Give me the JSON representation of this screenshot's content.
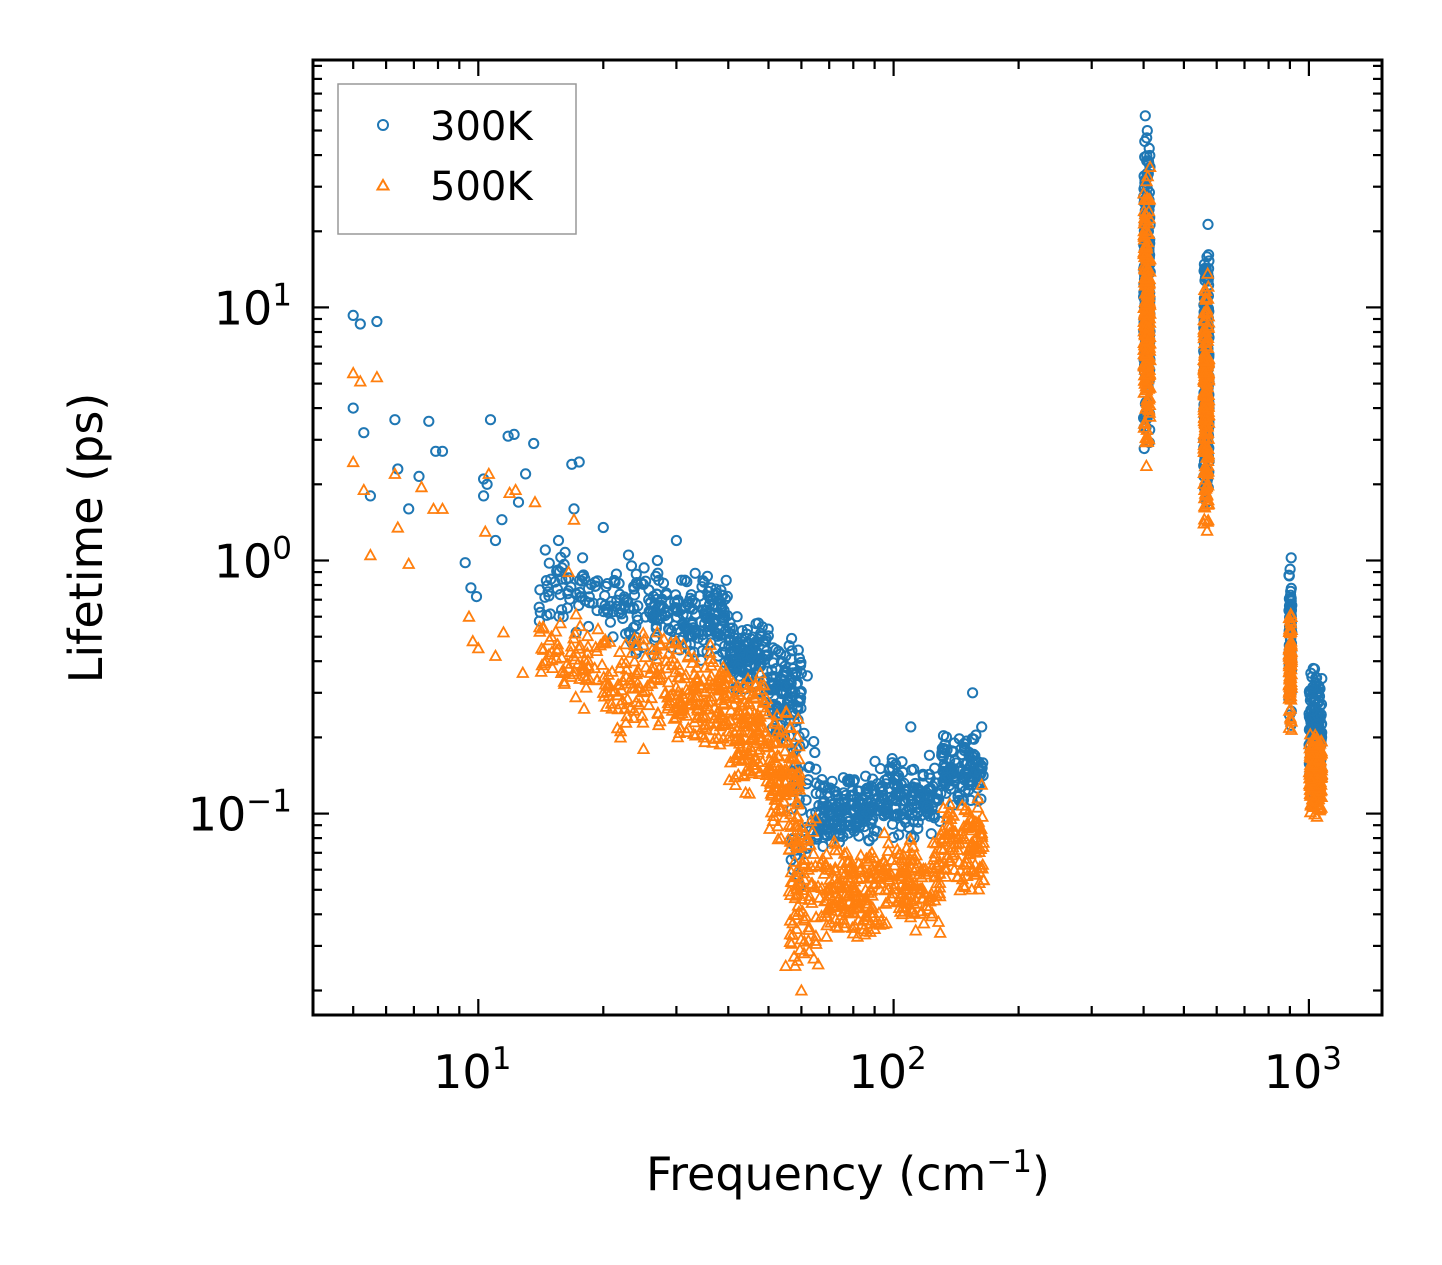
{
  "chart_data": {
    "type": "scatter",
    "title": "",
    "xlabel": "Frequency (cm",
    "xlabel_sup": "−1",
    "xlabel_tail": ")",
    "ylabel": "Lifetime (ps)",
    "xscale": "log",
    "yscale": "log",
    "xlim": [
      4.0,
      1500
    ],
    "ylim": [
      0.016,
      95
    ],
    "x_ticks": [
      {
        "value": 10,
        "base": "10",
        "exp": "1"
      },
      {
        "value": 100,
        "base": "10",
        "exp": "2"
      },
      {
        "value": 1000,
        "base": "10",
        "exp": "3"
      }
    ],
    "y_ticks": [
      {
        "value": 0.1,
        "base": "10",
        "exp": "−1"
      },
      {
        "value": 1,
        "base": "10",
        "exp": "0"
      },
      {
        "value": 10,
        "base": "10",
        "exp": "1"
      }
    ],
    "legend_position": "top-left",
    "series": [
      {
        "name": "300K",
        "marker": "circle",
        "color": "#1f77b4",
        "points": [
          [
            5.0,
            9.3
          ],
          [
            5.2,
            8.6
          ],
          [
            5.7,
            8.8
          ],
          [
            5.0,
            4.0
          ],
          [
            5.3,
            3.2
          ],
          [
            5.5,
            1.8
          ],
          [
            6.3,
            3.6
          ],
          [
            6.4,
            2.3
          ],
          [
            6.8,
            1.6
          ],
          [
            7.2,
            2.15
          ],
          [
            7.6,
            3.55
          ],
          [
            7.9,
            2.7
          ],
          [
            8.2,
            2.7
          ],
          [
            9.3,
            0.98
          ],
          [
            9.6,
            0.78
          ],
          [
            9.9,
            0.72
          ],
          [
            10.3,
            2.1
          ],
          [
            10.3,
            1.8
          ],
          [
            10.5,
            2.0
          ],
          [
            10.7,
            3.6
          ],
          [
            11.0,
            1.2
          ],
          [
            11.4,
            1.45
          ],
          [
            11.8,
            3.1
          ],
          [
            12.2,
            3.15
          ],
          [
            12.5,
            1.7
          ],
          [
            13.0,
            2.2
          ],
          [
            13.6,
            2.9
          ],
          [
            14.5,
            1.1
          ],
          [
            15.6,
            1.2
          ],
          [
            16.8,
            2.4
          ],
          [
            17.5,
            2.45
          ],
          [
            17.0,
            1.6
          ],
          [
            20.0,
            1.35
          ],
          [
            23.0,
            1.05
          ],
          [
            27.0,
            1.0
          ],
          [
            30.0,
            1.2
          ],
          [
            35.0,
            0.82
          ],
          [
            42.0,
            0.6
          ],
          [
            48.0,
            0.5
          ],
          [
            55.0,
            0.42
          ],
          [
            62.0,
            0.35
          ],
          [
            110.0,
            0.22
          ],
          [
            122.0,
            0.17
          ],
          [
            140.0,
            0.19
          ],
          [
            155.0,
            0.3
          ],
          [
            163.0,
            0.22
          ]
        ],
        "bands": [
          {
            "x_range": [
              14,
              20
            ],
            "y_range": [
              0.5,
              1.1
            ],
            "count": 60
          },
          {
            "x_range": [
              20,
              30
            ],
            "y_range": [
              0.4,
              1.05
            ],
            "count": 110
          },
          {
            "x_range": [
              30,
              40
            ],
            "y_range": [
              0.38,
              0.9
            ],
            "count": 130
          },
          {
            "x_range": [
              40,
              50
            ],
            "y_range": [
              0.28,
              0.65
            ],
            "count": 130
          },
          {
            "x_range": [
              50,
              60
            ],
            "y_range": [
              0.18,
              0.5
            ],
            "count": 110
          },
          {
            "x_range": [
              56,
              66
            ],
            "y_range": [
              0.05,
              0.3
            ],
            "count": 60
          },
          {
            "x_range": [
              66,
              90
            ],
            "y_range": [
              0.07,
              0.15
            ],
            "count": 160
          },
          {
            "x_range": [
              90,
              130
            ],
            "y_range": [
              0.08,
              0.17
            ],
            "count": 160
          },
          {
            "x_range": [
              130,
              165
            ],
            "y_range": [
              0.1,
              0.22
            ],
            "count": 120
          },
          {
            "x_range": [
              400,
              415
            ],
            "y_range": [
              2.5,
              60.0
            ],
            "count": 220
          },
          {
            "x_range": [
              558,
              575
            ],
            "y_range": [
              1.5,
              22.0
            ],
            "count": 200
          },
          {
            "x_range": [
              895,
              910
            ],
            "y_range": [
              0.2,
              1.05
            ],
            "count": 90
          },
          {
            "x_range": [
              1000,
              1075
            ],
            "y_range": [
              0.12,
              0.4
            ],
            "count": 160
          }
        ]
      },
      {
        "name": "500K",
        "marker": "triangle",
        "color": "#ff7f0e",
        "points": [
          [
            5.0,
            5.5
          ],
          [
            5.2,
            5.1
          ],
          [
            5.7,
            5.3
          ],
          [
            5.0,
            2.45
          ],
          [
            5.3,
            1.9
          ],
          [
            5.5,
            1.05
          ],
          [
            6.3,
            2.2
          ],
          [
            6.4,
            1.35
          ],
          [
            6.8,
            0.97
          ],
          [
            7.3,
            1.95
          ],
          [
            7.8,
            1.6
          ],
          [
            8.2,
            1.6
          ],
          [
            9.5,
            0.6
          ],
          [
            9.7,
            0.48
          ],
          [
            10.0,
            0.45
          ],
          [
            10.4,
            1.3
          ],
          [
            10.6,
            2.2
          ],
          [
            11.0,
            0.42
          ],
          [
            11.5,
            0.52
          ],
          [
            11.9,
            1.85
          ],
          [
            12.3,
            1.9
          ],
          [
            12.8,
            0.36
          ],
          [
            13.7,
            1.7
          ],
          [
            15.0,
            0.5
          ],
          [
            17.0,
            1.45
          ],
          [
            16.5,
            0.9
          ],
          [
            18.0,
            0.35
          ],
          [
            20.0,
            0.3
          ],
          [
            22.0,
            0.2
          ],
          [
            25.0,
            0.18
          ],
          [
            35.0,
            0.2
          ],
          [
            45.0,
            0.12
          ],
          [
            55.0,
            0.025
          ],
          [
            60.0,
            0.02
          ],
          [
            90.0,
            0.035
          ],
          [
            110.0,
            0.045
          ],
          [
            140.0,
            0.06
          ],
          [
            163.0,
            0.13
          ]
        ],
        "bands": [
          {
            "x_range": [
              14,
              20
            ],
            "y_range": [
              0.25,
              0.65
            ],
            "count": 70
          },
          {
            "x_range": [
              20,
              30
            ],
            "y_range": [
              0.2,
              0.55
            ],
            "count": 120
          },
          {
            "x_range": [
              30,
              40
            ],
            "y_range": [
              0.17,
              0.5
            ],
            "count": 140
          },
          {
            "x_range": [
              40,
              50
            ],
            "y_range": [
              0.12,
              0.38
            ],
            "count": 140
          },
          {
            "x_range": [
              50,
              60
            ],
            "y_range": [
              0.07,
              0.28
            ],
            "count": 120
          },
          {
            "x_range": [
              56,
              66
            ],
            "y_range": [
              0.022,
              0.12
            ],
            "count": 90
          },
          {
            "x_range": [
              66,
              90
            ],
            "y_range": [
              0.03,
              0.08
            ],
            "count": 160
          },
          {
            "x_range": [
              90,
              130
            ],
            "y_range": [
              0.033,
              0.085
            ],
            "count": 160
          },
          {
            "x_range": [
              130,
              165
            ],
            "y_range": [
              0.045,
              0.12
            ],
            "count": 120
          },
          {
            "x_range": [
              400,
              415
            ],
            "y_range": [
              2.3,
              37.0
            ],
            "count": 240
          },
          {
            "x_range": [
              558,
              575
            ],
            "y_range": [
              1.3,
              14.0
            ],
            "count": 220
          },
          {
            "x_range": [
              895,
              910
            ],
            "y_range": [
              0.2,
              0.65
            ],
            "count": 90
          },
          {
            "x_range": [
              1000,
              1075
            ],
            "y_range": [
              0.09,
              0.22
            ],
            "count": 170
          }
        ]
      }
    ]
  }
}
